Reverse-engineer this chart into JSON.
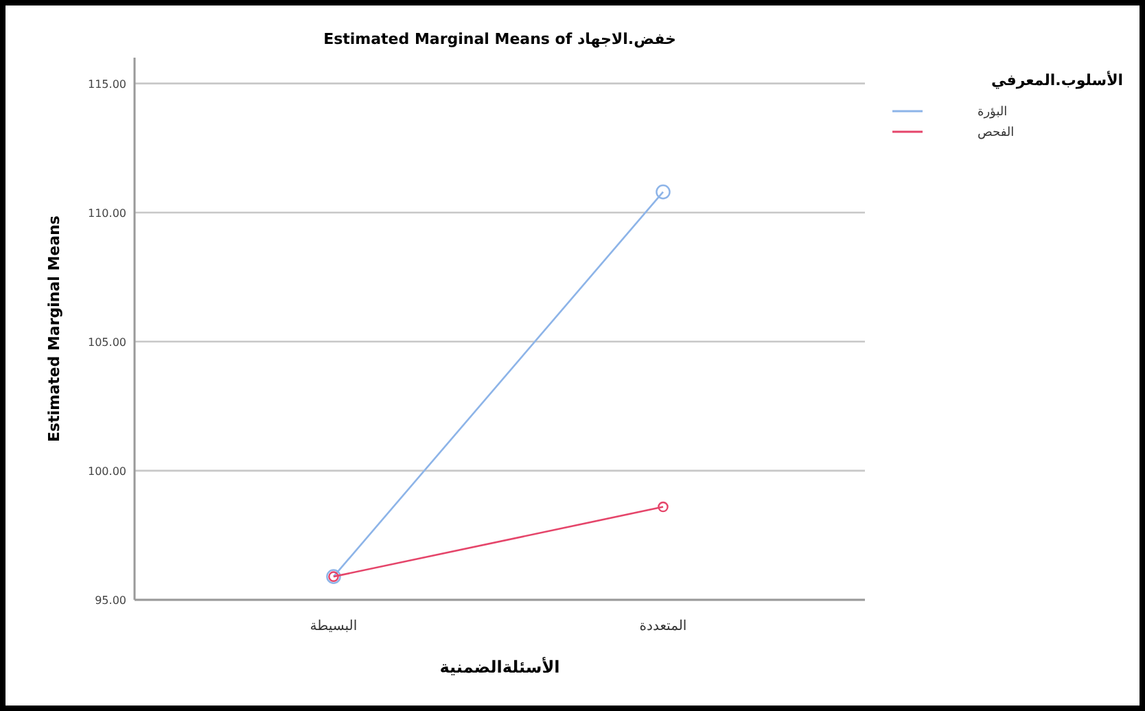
{
  "chart_data": {
    "type": "line",
    "title": "Estimated Marginal Means of خفض.الاجهاد",
    "xlabel": "الأسئلةالضمنية",
    "ylabel": "Estimated Marginal Means",
    "legend_title": "الأسلوب.المعرفي",
    "categories": [
      "البسيطة",
      "المتعددة"
    ],
    "series": [
      {
        "name": "البؤرة",
        "color": "#8db4e8",
        "values": [
          95.9,
          110.8
        ]
      },
      {
        "name": "الفحص",
        "color": "#e5456a",
        "values": [
          95.9,
          98.6
        ]
      }
    ],
    "ylim": [
      95,
      116
    ],
    "yticks": [
      {
        "value": 95,
        "label": "95.00"
      },
      {
        "value": 100,
        "label": "100.00"
      },
      {
        "value": 105,
        "label": "105.00"
      },
      {
        "value": 110,
        "label": "110.00"
      },
      {
        "value": 115,
        "label": "115.00"
      }
    ],
    "grid": "y",
    "legend": "top right",
    "marker": "circle",
    "line_style": "solid"
  }
}
